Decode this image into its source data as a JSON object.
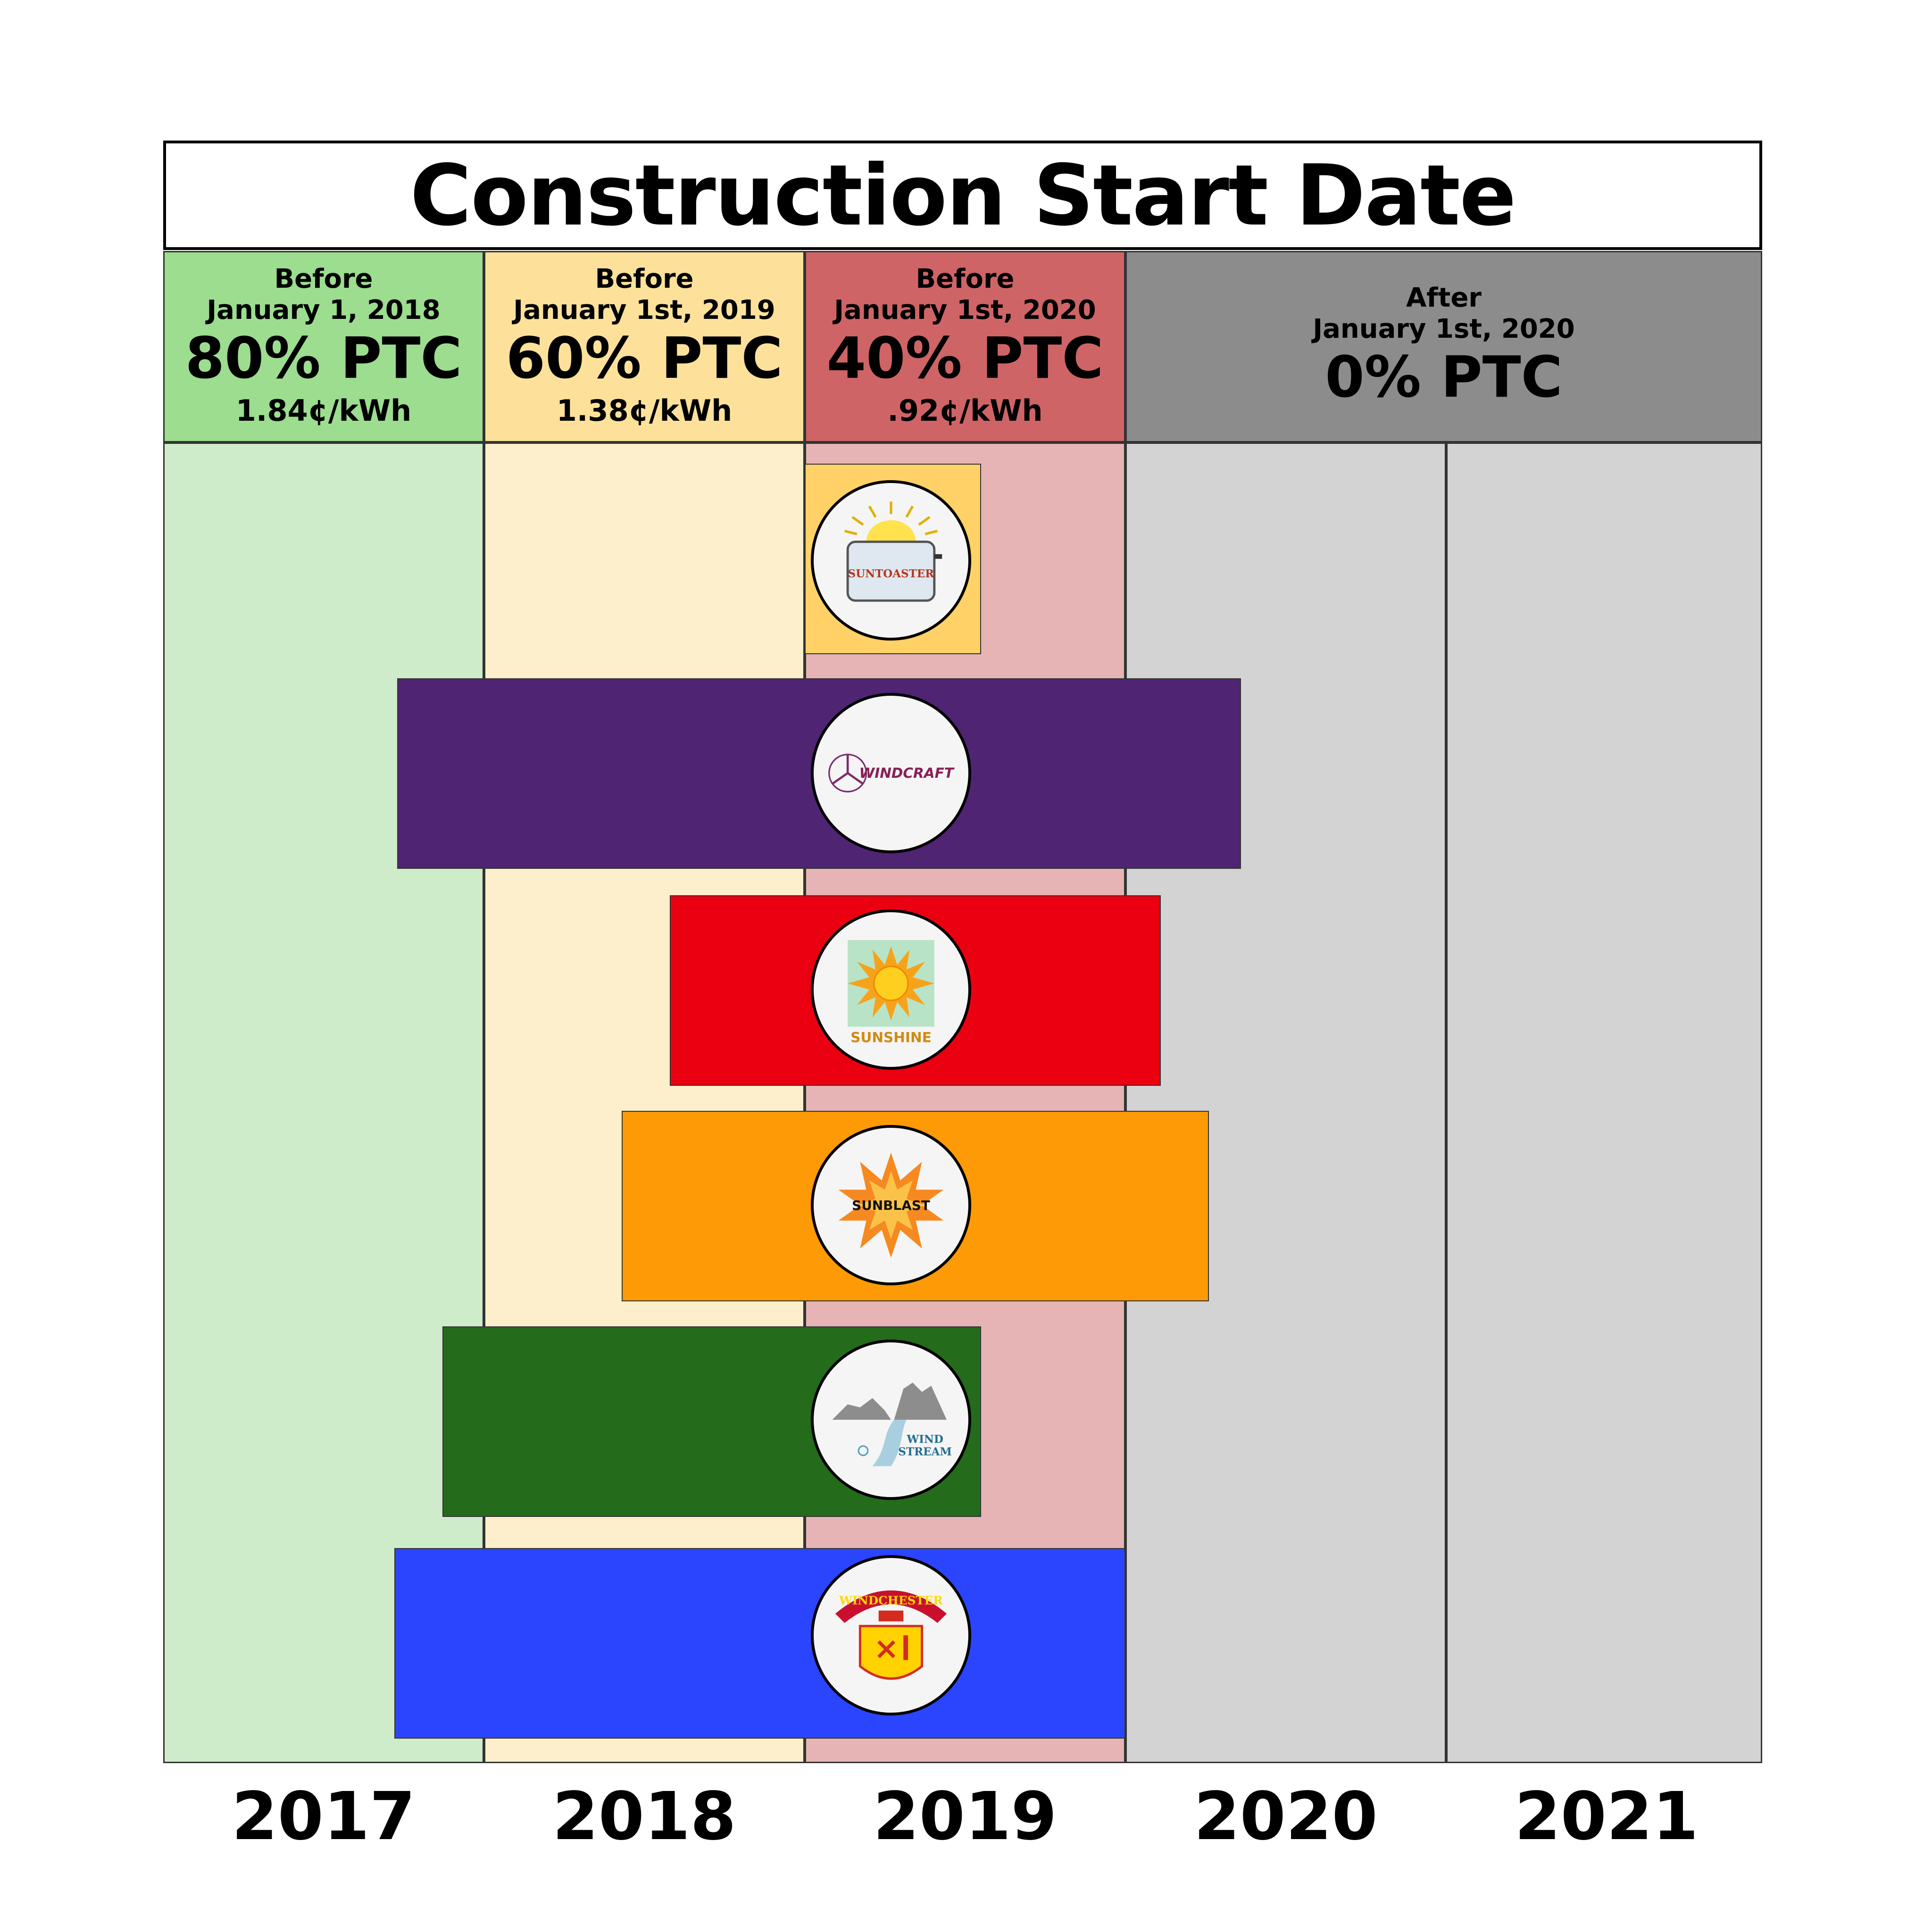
{
  "chart_data": {
    "type": "timeline",
    "title": "Construction Start Date",
    "x_axis": {
      "categories": [
        "2017",
        "2018",
        "2019",
        "2020",
        "2021"
      ]
    },
    "zones": [
      {
        "line1": "Before",
        "line2": "January 1, 2018",
        "ptc": "80% PTC",
        "rate": "1.84¢/kWh",
        "header_color": "#9cdd8f",
        "body_color": "#cfecca"
      },
      {
        "line1": "Before",
        "line2": "January 1st, 2019",
        "ptc": "60% PTC",
        "rate": "1.38¢/kWh",
        "header_color": "#fde19b",
        "body_color": "#fdefcc"
      },
      {
        "line1": "Before",
        "line2": "January 1st, 2020",
        "ptc": "40% PTC",
        "rate": ".92¢/kWh",
        "header_color": "#cf6467",
        "body_color": "#e6b4b4"
      },
      {
        "line1": "After",
        "line2": "January 1st, 2020",
        "ptc": "0% PTC",
        "rate": "",
        "header_color": "#8c8c8c",
        "body_color": "#d3d3d3"
      }
    ],
    "bars": [
      {
        "company": "SUNTOASTER",
        "start": 2019.0,
        "end": 2019.55,
        "color": "#ffd166"
      },
      {
        "company": "WINDCRAFT",
        "start": 2017.73,
        "end": 2020.36,
        "color": "#4f2473"
      },
      {
        "company": "SUNSHINE",
        "start": 2018.58,
        "end": 2020.11,
        "color": "#ea0010"
      },
      {
        "company": "SUNBLAST",
        "start": 2018.43,
        "end": 2020.26,
        "color": "#fd9a06"
      },
      {
        "company": "WIND STREAM",
        "start": 2017.87,
        "end": 2019.55,
        "color": "#246b1b"
      },
      {
        "company": "WINDCHESTER",
        "start": 2017.72,
        "end": 2020.0,
        "color": "#2a45fd"
      }
    ]
  }
}
